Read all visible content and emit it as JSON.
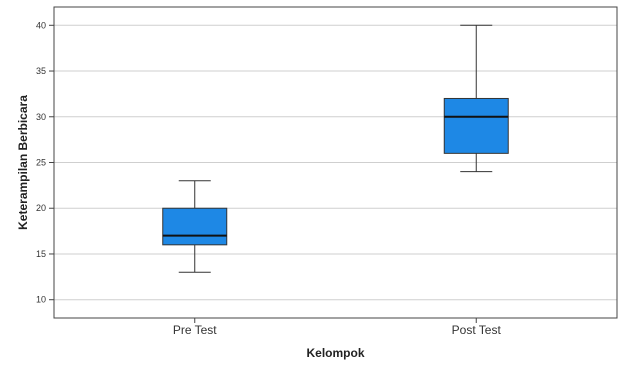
{
  "chart_data": {
    "type": "boxplot",
    "title": "",
    "xlabel": "Kelompok",
    "ylabel": "Keterampilan Berbicara",
    "ylim": [
      8,
      42
    ],
    "yticks": [
      10,
      15,
      20,
      25,
      30,
      35,
      40
    ],
    "grid": true,
    "categories": [
      "Pre Test",
      "Post Test"
    ],
    "boxes": [
      {
        "category": "Pre Test",
        "min": 13,
        "q1": 16,
        "median": 17,
        "q3": 20,
        "max": 23
      },
      {
        "category": "Post Test",
        "min": 24,
        "q1": 26,
        "median": 30,
        "q3": 32,
        "max": 40
      }
    ],
    "box_color": "#1e88e5"
  }
}
